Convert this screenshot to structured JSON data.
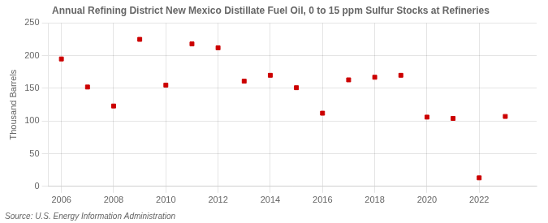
{
  "chart_data": {
    "type": "scatter",
    "title": "Annual Refining District New Mexico Distillate Fuel Oil, 0 to 15 ppm Sulfur Stocks at Refineries",
    "ylabel": "Thousand Barrels",
    "annotations": [
      "Source: U.S. Energy Information Administration"
    ],
    "x": [
      2006,
      2007,
      2008,
      2009,
      2010,
      2011,
      2012,
      2013,
      2014,
      2015,
      2016,
      2017,
      2018,
      2019,
      2020,
      2021,
      2022,
      2023
    ],
    "values": [
      195,
      152,
      123,
      225,
      155,
      218,
      212,
      161,
      170,
      151,
      112,
      163,
      167,
      170,
      106,
      104,
      13,
      107
    ],
    "color": "#cc0000",
    "marker": "square",
    "xlim": [
      2005.5,
      2024.2
    ],
    "xticks": [
      2006,
      2008,
      2010,
      2012,
      2014,
      2016,
      2018,
      2020,
      2022
    ],
    "ylim": [
      0,
      250
    ],
    "yticks": [
      0,
      50,
      100,
      150,
      200,
      250
    ],
    "grid": true
  }
}
